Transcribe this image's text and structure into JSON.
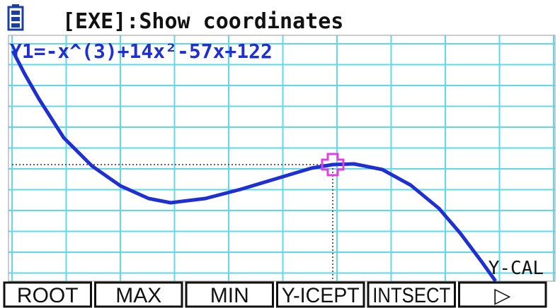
{
  "header": {
    "title": "[EXE]:Show coordinates"
  },
  "graph": {
    "function": "Y1=-x^(3)+14x²-57x+122",
    "mode": "Y-CAL"
  },
  "menu": {
    "items": [
      "ROOT",
      "MAX",
      "MIN",
      "Y-ICEPT",
      "INTSECT",
      "▷"
    ]
  }
}
